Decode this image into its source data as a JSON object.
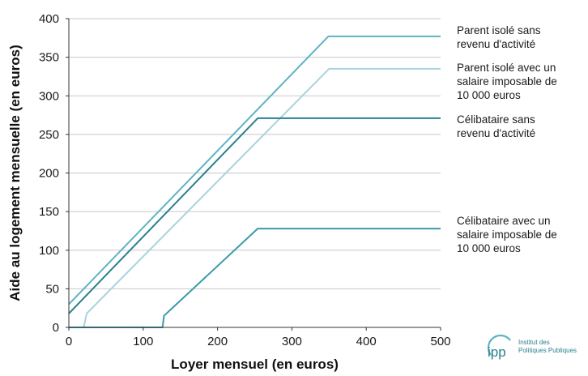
{
  "chart_data": {
    "type": "line",
    "xlabel": "Loyer mensuel (en euros)",
    "ylabel": "Aide au logement mensuelle (en euros)",
    "xlim": [
      0,
      500
    ],
    "ylim": [
      0,
      400
    ],
    "x_ticks": [
      "0",
      "100",
      "200",
      "300",
      "400",
      "500"
    ],
    "y_ticks": [
      "0",
      "50",
      "100",
      "150",
      "200",
      "250",
      "300",
      "350",
      "400"
    ],
    "grid": "horizontal",
    "legend": "right, labels at line ends",
    "series": [
      {
        "name": "Parent isolé sans revenu d'activité",
        "label_lines": [
          "Parent isolé sans",
          "revenu d'activité"
        ],
        "color": "#5fb3c3",
        "points": [
          [
            0,
            30
          ],
          [
            349,
            377
          ],
          [
            500,
            377
          ]
        ]
      },
      {
        "name": "Parent isolé avec un salaire imposable de 10 000 euros",
        "label_lines": [
          "Parent isolé avec un",
          "salaire imposable de",
          "10 000 euros"
        ],
        "color": "#a9d3de",
        "points": [
          [
            0,
            0
          ],
          [
            20,
            0
          ],
          [
            24,
            18
          ],
          [
            350,
            335
          ],
          [
            500,
            335
          ]
        ]
      },
      {
        "name": "Célibataire sans revenu d'activité",
        "label_lines": [
          "Célibataire sans",
          "revenu d'activité"
        ],
        "color": "#2a7f8e",
        "points": [
          [
            0,
            18
          ],
          [
            254,
            271
          ],
          [
            500,
            271
          ]
        ]
      },
      {
        "name": "Célibataire avec un salaire imposable de 10 000 euros",
        "label_lines": [
          "Célibataire avec un",
          "salaire imposable de",
          "10 000 euros"
        ],
        "color": "#3a9aaa",
        "points": [
          [
            0,
            0
          ],
          [
            126,
            0
          ],
          [
            128,
            15
          ],
          [
            254,
            128
          ],
          [
            500,
            128
          ]
        ]
      }
    ]
  },
  "logo": {
    "mark": "ipp",
    "line1": "Institut des",
    "line2": "Politiques Publiques"
  }
}
